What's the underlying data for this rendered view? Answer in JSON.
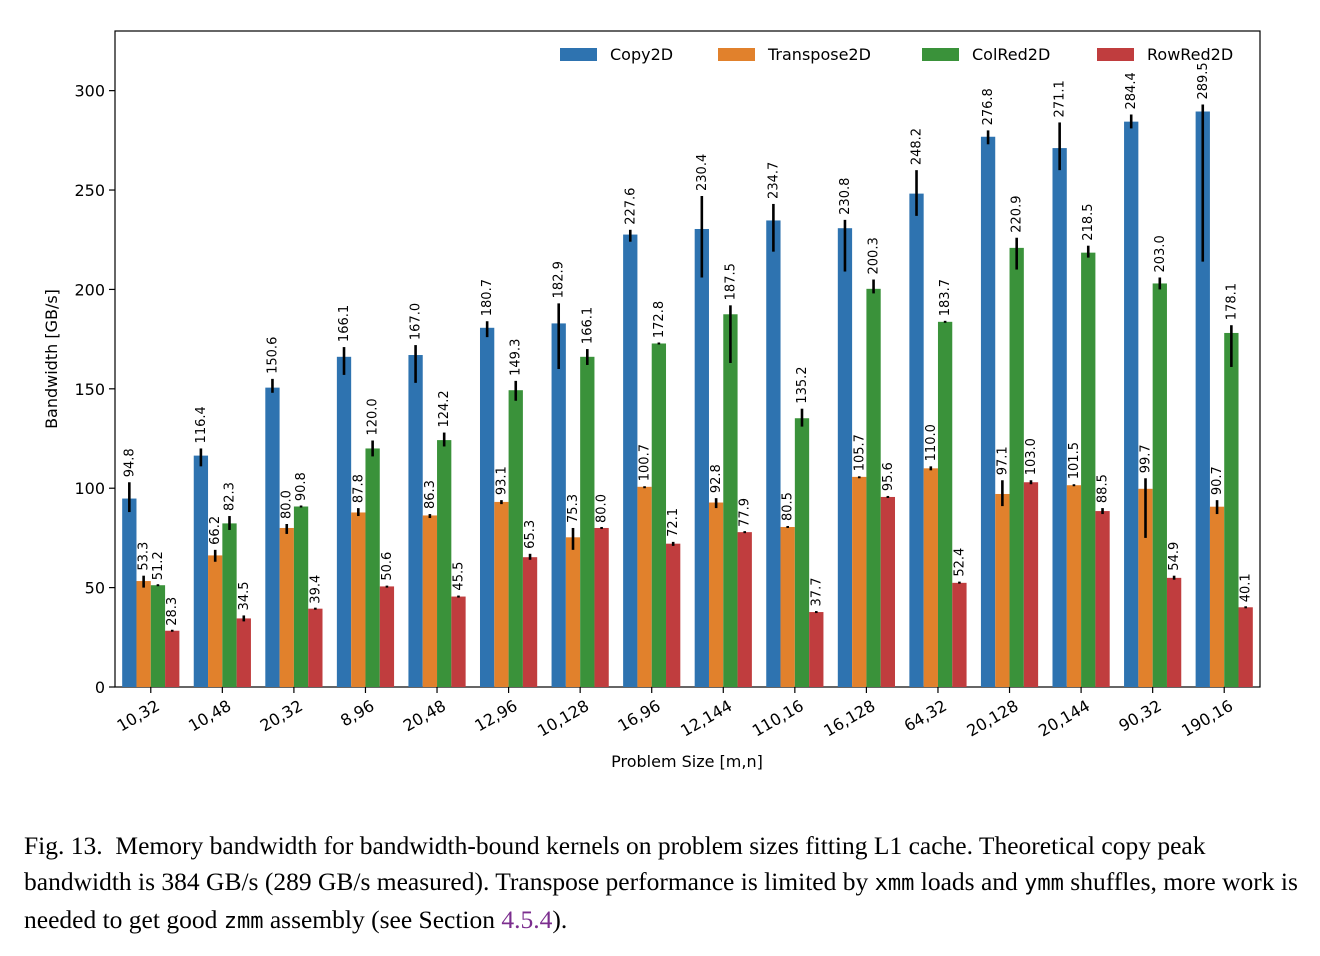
{
  "chart_data": {
    "type": "bar",
    "xlabel": "Problem Size [m,n]",
    "ylabel": "Bandwidth [GB/s]",
    "ylim": [
      0,
      330
    ],
    "yticks": [
      0,
      50,
      100,
      150,
      200,
      250,
      300
    ],
    "legend_position": "top-right",
    "categories": [
      "10,32",
      "10,48",
      "20,32",
      "8,96",
      "20,48",
      "12,96",
      "10,128",
      "16,96",
      "12,144",
      "110,16",
      "16,128",
      "64,32",
      "20,128",
      "20,144",
      "90,32",
      "190,16"
    ],
    "series": [
      {
        "name": "Copy2D",
        "color": "#2e73b0",
        "values": [
          94.8,
          116.4,
          150.6,
          166.1,
          167.0,
          180.7,
          182.9,
          227.6,
          230.4,
          234.7,
          230.8,
          248.2,
          276.8,
          271.1,
          284.4,
          289.5
        ],
        "labels": [
          "94.8",
          "116.4",
          "150.6",
          "166.1",
          "167.0",
          "180.7",
          "182.9",
          "227.6",
          "230.4",
          "234.7",
          "230.8",
          "248.2",
          "276.8",
          "271.1",
          "284.4",
          "289.5"
        ],
        "error_low": [
          88,
          111,
          148,
          157,
          153,
          176,
          160,
          224,
          206,
          219,
          209,
          237,
          273,
          260,
          281,
          214
        ],
        "error_high": [
          103,
          120,
          155,
          171,
          172,
          184,
          193,
          230,
          247,
          243,
          235,
          260,
          280,
          284,
          288,
          293
        ]
      },
      {
        "name": "Transpose2D",
        "color": "#e1812c",
        "values": [
          53.3,
          66.2,
          80.0,
          87.8,
          86.3,
          93.1,
          75.3,
          100.7,
          92.8,
          80.5,
          105.7,
          110.0,
          97.1,
          101.5,
          99.7,
          90.7
        ],
        "labels": [
          "53.3",
          "66.2",
          "80.0",
          "87.8",
          "86.3",
          "93.1",
          "75.3",
          "100.7",
          "92.8",
          "80.5",
          "105.7",
          "110.0",
          "97.1",
          "101.5",
          "99.7",
          "90.7"
        ],
        "error_low": [
          50,
          63,
          77,
          86,
          85,
          92,
          69,
          100,
          90,
          80,
          105,
          109,
          91,
          101,
          75,
          87
        ],
        "error_high": [
          56,
          69,
          82,
          90,
          87,
          94,
          80,
          101,
          95,
          81,
          106,
          111,
          104,
          102,
          105,
          94
        ]
      },
      {
        "name": "ColRed2D",
        "color": "#3a923a",
        "values": [
          51.2,
          82.3,
          90.8,
          120.0,
          124.2,
          149.3,
          166.1,
          172.8,
          187.5,
          135.2,
          200.3,
          183.7,
          220.9,
          218.5,
          203.0,
          178.1
        ],
        "labels": [
          "51.2",
          "82.3",
          "90.8",
          "120.0",
          "124.2",
          "149.3",
          "166.1",
          "172.8",
          "187.5",
          "135.2",
          "200.3",
          "183.7",
          "220.9",
          "218.5",
          "203.0",
          "178.1"
        ],
        "error_low": [
          51,
          79,
          91,
          116,
          121,
          144,
          162,
          173,
          163,
          131,
          198,
          184,
          210,
          216,
          200,
          161
        ],
        "error_high": [
          51,
          86,
          91,
          124,
          128,
          154,
          170,
          173,
          192,
          140,
          205,
          184,
          226,
          222,
          206,
          182
        ]
      },
      {
        "name": "RowRed2D",
        "color": "#c03d3e",
        "values": [
          28.3,
          34.5,
          39.4,
          50.6,
          45.5,
          65.3,
          80.0,
          72.1,
          77.9,
          37.7,
          95.6,
          52.4,
          103.0,
          88.5,
          54.9,
          40.1
        ],
        "labels": [
          "28.3",
          "34.5",
          "39.4",
          "50.6",
          "45.5",
          "65.3",
          "80.0",
          "72.1",
          "77.9",
          "37.7",
          "95.6",
          "52.4",
          "103.0",
          "88.5",
          "54.9",
          "40.1"
        ],
        "error_low": [
          28,
          33,
          39,
          50,
          45,
          64,
          80,
          71,
          78,
          38,
          96,
          52,
          102,
          87,
          54,
          40
        ],
        "error_high": [
          28,
          36,
          39,
          51,
          46,
          67,
          80,
          73,
          78,
          38,
          96,
          53,
          104,
          90,
          56,
          40
        ]
      }
    ]
  },
  "caption": {
    "fig": "Fig. 13.",
    "text1": "Memory bandwidth for bandwidth-bound kernels on problem sizes fitting L1 cache. Theoretical copy peak bandwidth is 384 GB/s (289 GB/s measured). Transpose performance is limited by ",
    "code1": "xmm",
    "text2": " loads and ",
    "code2": "ymm",
    "text3": " shuffles, more work is needed to get good ",
    "code3": "zmm",
    "text4": " assembly (see Section ",
    "ref": "4.5.4",
    "text5": ")."
  }
}
